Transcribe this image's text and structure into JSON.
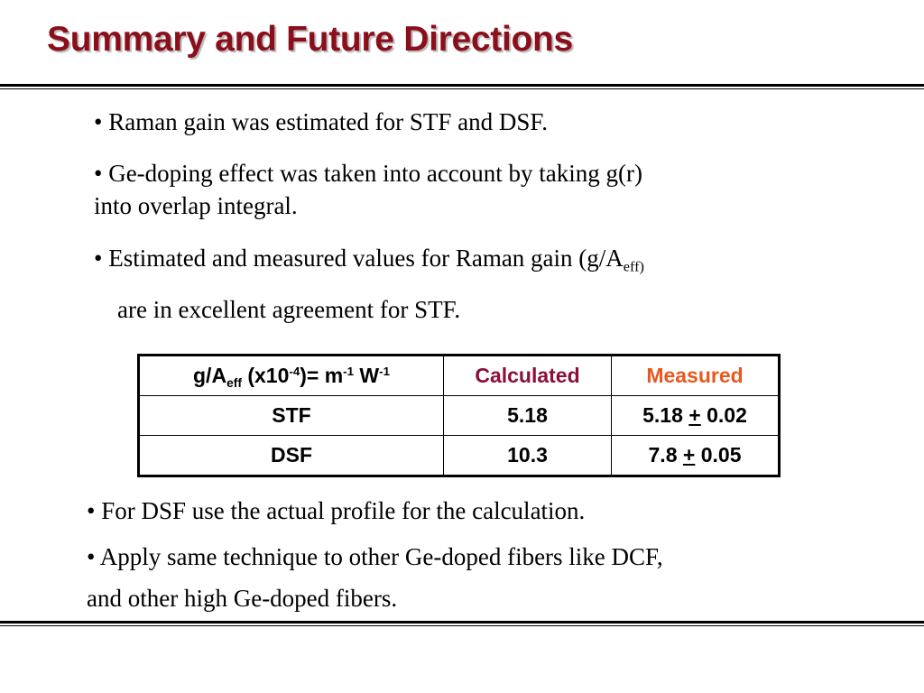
{
  "title": "Summary and Future Directions",
  "bullets_top": [
    "• Raman gain was estimated for STF and DSF.",
    "• Ge-doping effect was taken into account by taking g(r)",
    "into overlap integral.",
    "• Estimated and measured values for Raman gain (g/A",
    "eff)",
    "are in excellent agreement for STF."
  ],
  "table": {
    "header": {
      "prefix": "g/A",
      "eff_sub": "eff",
      "mid": " (x10",
      "exp1": "-4",
      "mid2": ")= m",
      "exp2": "-1",
      "mid3": " W",
      "exp3": "-1",
      "calculated": "Calculated",
      "measured": "Measured"
    },
    "rows": [
      {
        "name": "STF",
        "calc": "5.18",
        "meas_value": "5.18 ",
        "pm": "+",
        "meas_err": " 0.02"
      },
      {
        "name": "DSF",
        "calc": "10.3",
        "meas_value": "7.8 ",
        "pm": "+",
        "meas_err": " 0.05"
      }
    ]
  },
  "bullets_bottom": [
    "• For DSF use the actual profile for the calculation.",
    "• Apply same technique to other Ge-doped fibers like DCF,",
    "and other high Ge-doped fibers."
  ],
  "colors": {
    "title": "#8b0f1a",
    "calculated_header": "#8b0f3a",
    "measured_header": "#e8581f"
  }
}
